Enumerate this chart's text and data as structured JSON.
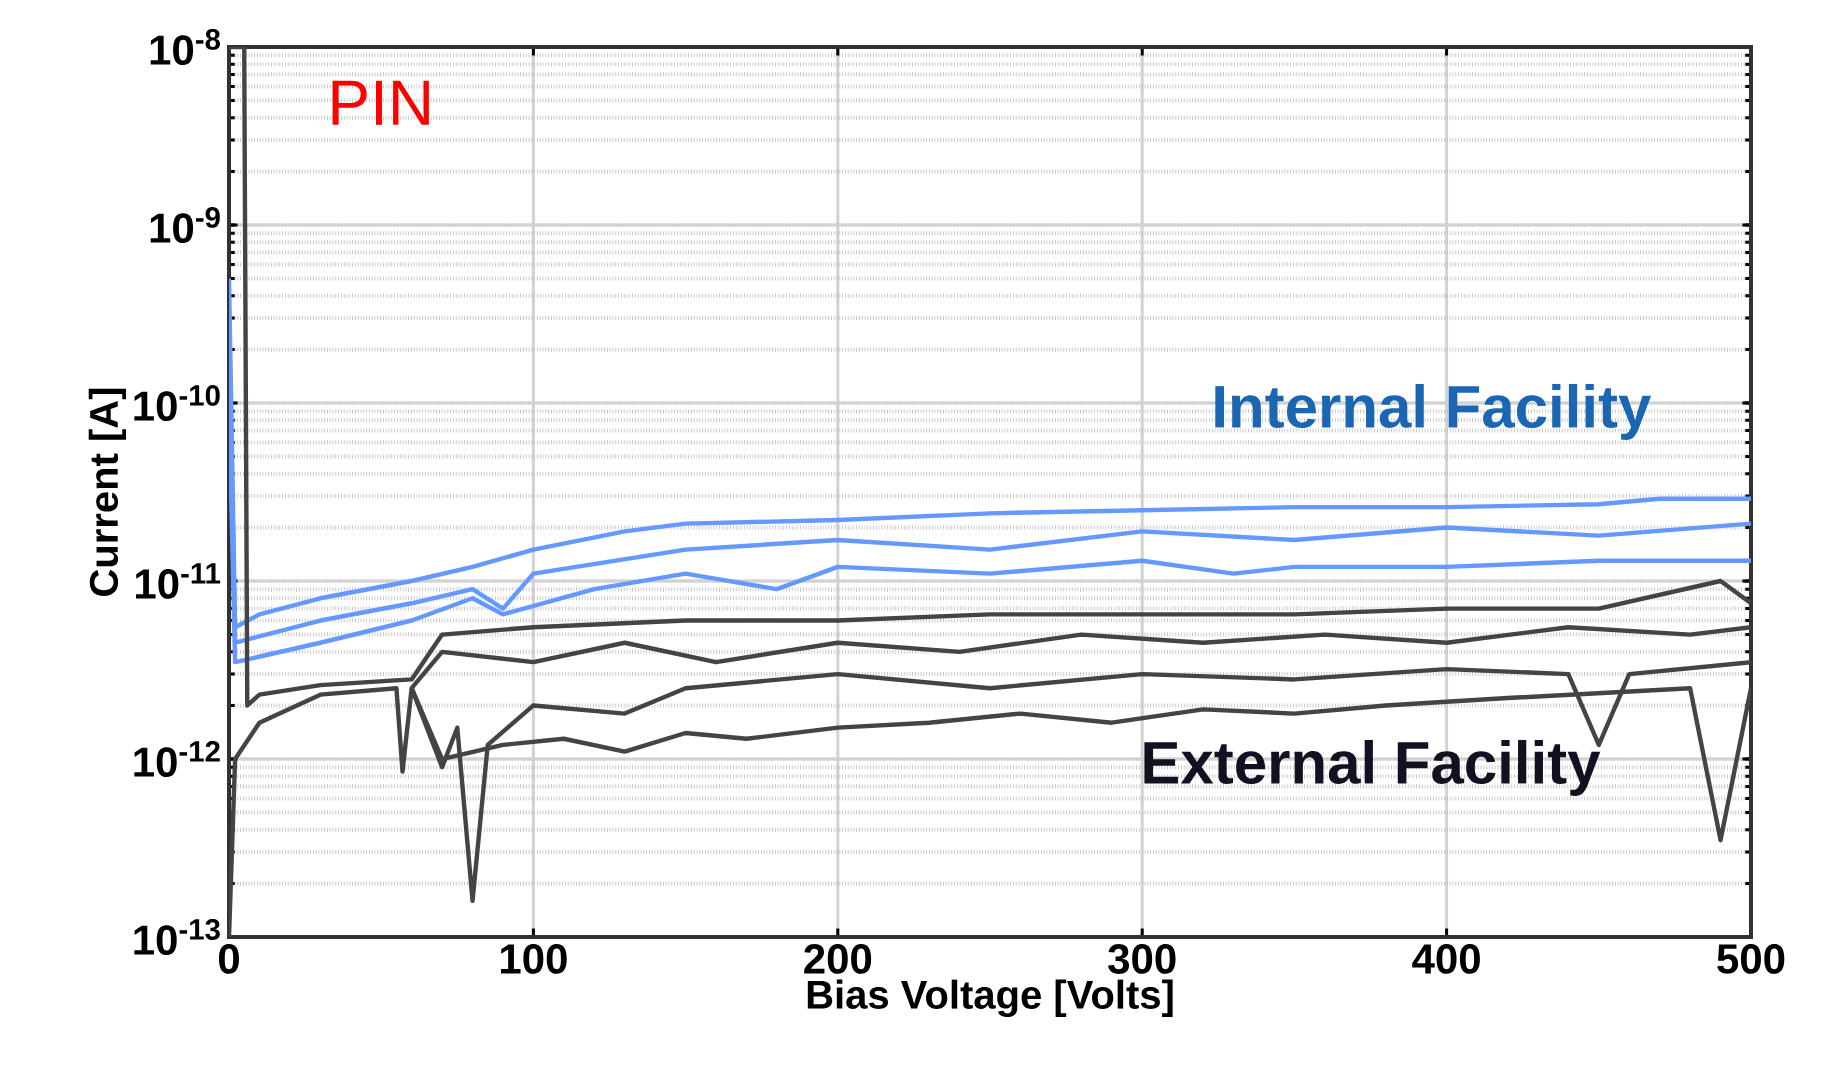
{
  "chart_data": {
    "type": "line",
    "xlabel": "Bias Voltage [Volts]",
    "ylabel": "Current [A]",
    "log": "y",
    "grid": true,
    "marker": "none",
    "line_style": "solid",
    "xlim": [
      0,
      500
    ],
    "ylim": [
      1e-13,
      1e-08
    ],
    "xticks": [
      0,
      100,
      200,
      300,
      400,
      500
    ],
    "yticks": [
      {
        "value": 1e-13,
        "label": "10$^{-13}$"
      },
      {
        "value": 1e-12,
        "label": "10$^{-12}$"
      },
      {
        "value": 1e-11,
        "label": "10$^{-11}$"
      },
      {
        "value": 1e-10,
        "label": "10$^{-10}$"
      },
      {
        "value": 1e-09,
        "label": "10$^{-9}$"
      },
      {
        "value": 1e-08,
        "label": "10$^{-8}$"
      }
    ],
    "annotations": [
      "PIN",
      "Internal Facility",
      "External Facility"
    ],
    "series": [
      {
        "color": "#6699ff",
        "x": [
          0,
          2,
          10,
          30,
          60,
          80,
          100,
          130,
          150,
          200,
          250,
          300,
          350,
          400,
          450,
          470,
          500
        ],
        "values": [
          5e-10,
          5.5e-12,
          6.5e-12,
          8e-12,
          1e-11,
          1.2e-11,
          1.5e-11,
          1.9e-11,
          2.1e-11,
          2.2e-11,
          2.4e-11,
          2.5e-11,
          2.6e-11,
          2.6e-11,
          2.7e-11,
          2.9e-11,
          2.9e-11
        ]
      },
      {
        "color": "#6699ff",
        "x": [
          0,
          2,
          30,
          60,
          80,
          90,
          100,
          150,
          200,
          250,
          300,
          350,
          400,
          450,
          500
        ],
        "values": [
          3e-10,
          4.5e-12,
          6e-12,
          7.5e-12,
          9e-12,
          7e-12,
          1.1e-11,
          1.5e-11,
          1.7e-11,
          1.5e-11,
          1.9e-11,
          1.7e-11,
          2e-11,
          1.8e-11,
          2.1e-11
        ]
      },
      {
        "color": "#6699ff",
        "x": [
          0,
          2,
          30,
          60,
          80,
          90,
          120,
          150,
          180,
          200,
          250,
          300,
          330,
          350,
          400,
          450,
          500
        ],
        "values": [
          1e-10,
          3.5e-12,
          4.5e-12,
          6e-12,
          8e-12,
          6.5e-12,
          9e-12,
          1.1e-11,
          9e-12,
          1.2e-11,
          1.1e-11,
          1.3e-11,
          1.1e-11,
          1.2e-11,
          1.2e-11,
          1.3e-11,
          1.3e-11
        ]
      },
      {
        "color": "#444444",
        "x": [
          0,
          1,
          3,
          5,
          6,
          10,
          30,
          60,
          70,
          100,
          150,
          200,
          250,
          300,
          350,
          400,
          450,
          490,
          500
        ],
        "values": [
          1e-08,
          1e-08,
          1e-08,
          1e-08,
          2e-12,
          2.3e-12,
          2.6e-12,
          2.8e-12,
          5e-12,
          5.5e-12,
          6e-12,
          6e-12,
          6.5e-12,
          6.5e-12,
          6.5e-12,
          7e-12,
          7e-12,
          1e-11,
          7.5e-12
        ]
      },
      {
        "color": "#444444",
        "x": [
          0,
          2,
          10,
          30,
          55,
          57,
          60,
          70,
          75,
          80,
          85,
          100,
          130,
          150,
          200,
          250,
          300,
          350,
          400,
          440,
          450,
          460,
          500
        ],
        "values": [
          1e-13,
          1e-12,
          1.6e-12,
          2.3e-12,
          2.5e-12,
          8.5e-13,
          2.5e-12,
          9e-13,
          1.5e-12,
          1.6e-13,
          1.2e-12,
          2e-12,
          1.8e-12,
          2.5e-12,
          3e-12,
          2.5e-12,
          3e-12,
          2.8e-12,
          3.2e-12,
          3e-12,
          1.2e-12,
          3e-12,
          3.5e-12
        ]
      },
      {
        "color": "#444444",
        "x": [
          60,
          70,
          90,
          110,
          130,
          150,
          170,
          200,
          230,
          260,
          290,
          320,
          350,
          380,
          420,
          480,
          490,
          500
        ],
        "values": [
          2.5e-12,
          1e-12,
          1.2e-12,
          1.3e-12,
          1.1e-12,
          1.4e-12,
          1.3e-12,
          1.5e-12,
          1.6e-12,
          1.8e-12,
          1.6e-12,
          1.9e-12,
          1.8e-12,
          2e-12,
          2.2e-12,
          2.5e-12,
          3.5e-13,
          2.5e-12
        ]
      },
      {
        "color": "#444444",
        "x": [
          60,
          70,
          100,
          130,
          160,
          200,
          240,
          280,
          320,
          360,
          400,
          440,
          480,
          500
        ],
        "values": [
          2.5e-12,
          4e-12,
          3.5e-12,
          4.5e-12,
          3.5e-12,
          4.5e-12,
          4e-12,
          5e-12,
          4.5e-12,
          5e-12,
          4.5e-12,
          5.5e-12,
          5e-12,
          5.5e-12
        ]
      }
    ]
  }
}
